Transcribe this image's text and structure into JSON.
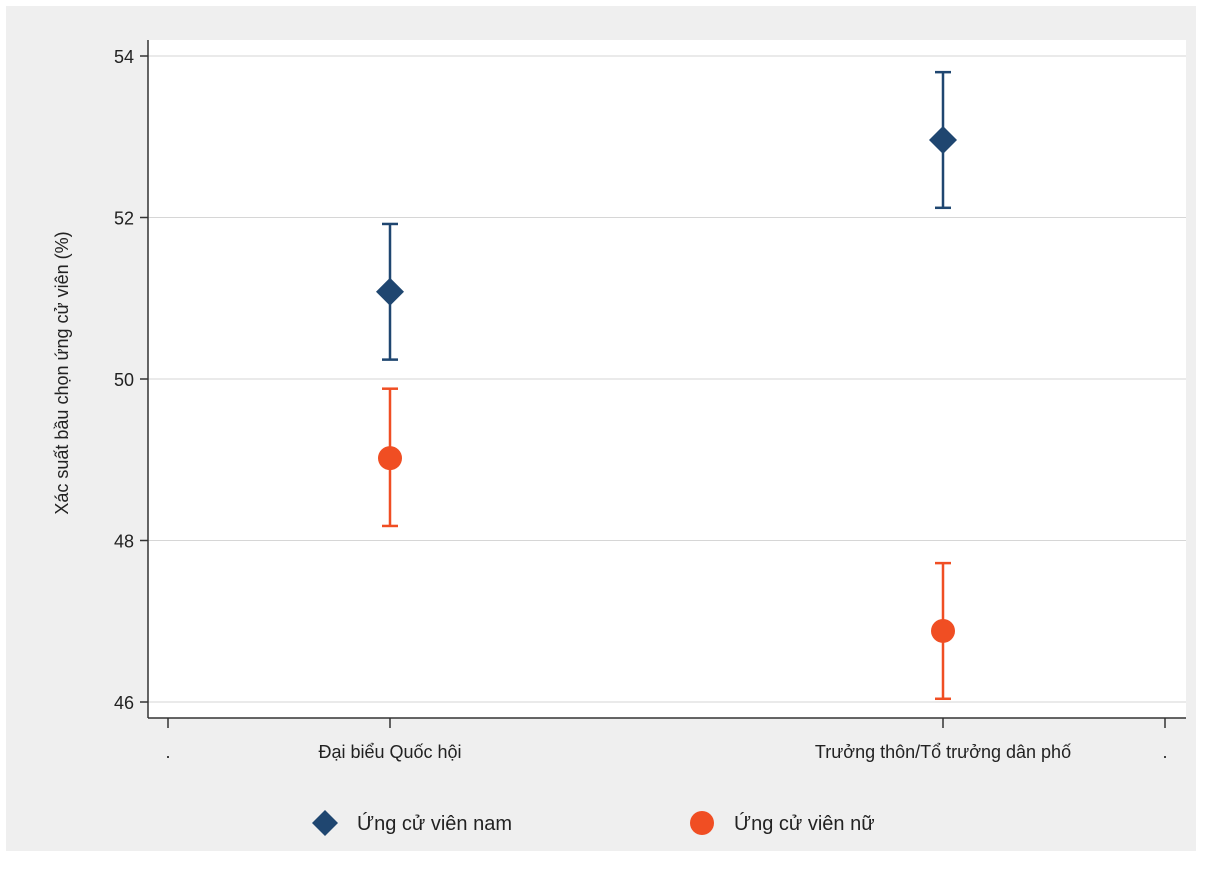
{
  "chart_data": {
    "type": "scatter",
    "title": "",
    "xlabel": "",
    "ylabel": "Xác suất bầu chọn ứng cử viên (%)",
    "categories": [
      "Đại biểu Quốc hội",
      "Trưởng thôn/Tổ trưởng dân phố"
    ],
    "x_tick_labels": [
      ".",
      "Đại biểu Quốc hội",
      "Trưởng thôn/Tổ trưởng dân phố",
      "."
    ],
    "ylim": [
      45.8,
      54.5
    ],
    "yticks": [
      46,
      48,
      50,
      52,
      54
    ],
    "grid": true,
    "legend_position": "bottom",
    "series": [
      {
        "name": "Ứng cử viên nam",
        "marker": "diamond",
        "color": "#1f4670",
        "values": [
          51.08,
          52.96
        ],
        "ci_low": [
          50.24,
          52.12
        ],
        "ci_high": [
          51.92,
          53.8
        ]
      },
      {
        "name": "Ứng cử viên nữ",
        "marker": "circle",
        "color": "#f04e23",
        "values": [
          49.02,
          46.88
        ],
        "ci_low": [
          48.18,
          46.04
        ],
        "ci_high": [
          49.88,
          47.72
        ]
      }
    ]
  }
}
